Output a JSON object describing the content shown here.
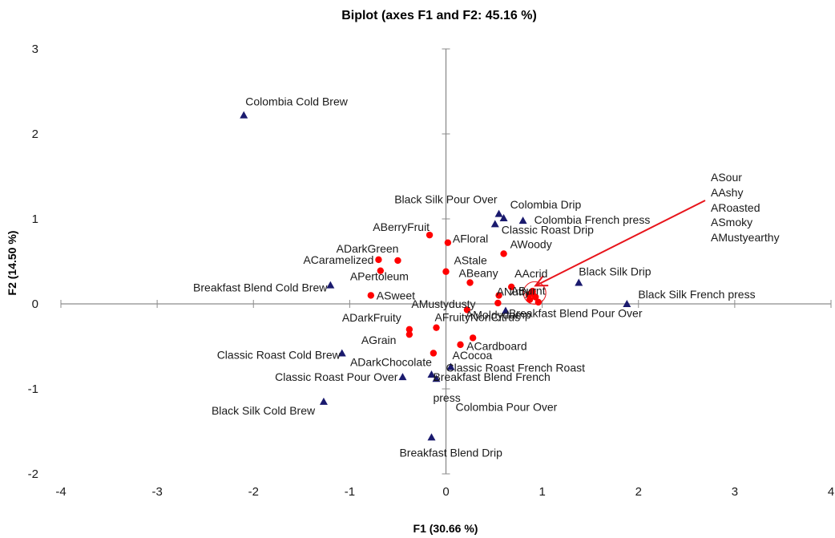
{
  "chart_data": {
    "type": "scatter",
    "title": "Biplot (axes F1 and F2: 45.16 %)",
    "xlabel": "F1 (30.66 %)",
    "ylabel": "F2 (14.50 %)",
    "xlim": [
      -4,
      4
    ],
    "ylim": [
      -2,
      3
    ],
    "xticks": [
      -4,
      -3,
      -2,
      -1,
      0,
      1,
      2,
      3,
      4
    ],
    "yticks": [
      -2,
      -1,
      0,
      1,
      2,
      3
    ],
    "grid": false,
    "colors": {
      "observations": "#1a1a6e",
      "variables": "#ff0000",
      "arrow": "#e8141b",
      "axis": "#8c8c8c"
    },
    "series": [
      {
        "marker": "triangle",
        "points": [
          {
            "label": "Colombia Cold Brew",
            "x": -2.1,
            "y": 2.22
          },
          {
            "label": "Black Silk Pour Over",
            "x": 0.55,
            "y": 1.06
          },
          {
            "label": "Colombia Drip",
            "x": 0.6,
            "y": 1.01
          },
          {
            "label": "Colombia French press",
            "x": 0.8,
            "y": 0.98
          },
          {
            "label": "Classic Roast Drip",
            "x": 0.51,
            "y": 0.94
          },
          {
            "label": "Breakfast Blend Cold Brew",
            "x": -1.2,
            "y": 0.22
          },
          {
            "label": "Black Silk Drip",
            "x": 1.38,
            "y": 0.25
          },
          {
            "label": "Black Silk French press",
            "x": 1.88,
            "y": 0.0
          },
          {
            "label": "Breakfast Blend Pour Over",
            "x": 0.62,
            "y": -0.08
          },
          {
            "label": "Classic Roast Cold Brew",
            "x": -1.08,
            "y": -0.58
          },
          {
            "label": "Classic Roast French Roast",
            "x": 0.05,
            "y": -0.74
          },
          {
            "label": "Classic Roast Pour Over",
            "x": -0.45,
            "y": -0.86
          },
          {
            "label": "Breakfast Blend French\npress",
            "x": -0.15,
            "y": -0.83
          },
          {
            "label": "Colombia Pour Over",
            "x": -0.1,
            "y": -0.88
          },
          {
            "label": "Black Silk Cold Brew",
            "x": -1.27,
            "y": -1.15
          },
          {
            "label": "Breakfast Blend Drip",
            "x": -0.15,
            "y": -1.57
          }
        ]
      },
      {
        "marker": "circle",
        "points": [
          {
            "label": "ABerryFruit",
            "x": -0.17,
            "y": 0.81
          },
          {
            "label": "AFloral",
            "x": 0.02,
            "y": 0.72
          },
          {
            "label": "ADarkGreen",
            "x": -0.5,
            "y": 0.51
          },
          {
            "label": "AWoody",
            "x": 0.6,
            "y": 0.59
          },
          {
            "label": "ACaramelized",
            "x": -0.7,
            "y": 0.52
          },
          {
            "label": "AStale",
            "x": 0.0,
            "y": 0.38
          },
          {
            "label": "ABeany",
            "x": 0.25,
            "y": 0.25
          },
          {
            "label": "APertoleum",
            "x": -0.68,
            "y": 0.39
          },
          {
            "label": "AAcrid",
            "x": 0.68,
            "y": 0.2
          },
          {
            "label": "ANutty",
            "x": 0.55,
            "y": 0.1
          },
          {
            "label": "ABurnt",
            "x": 0.86,
            "y": 0.11
          },
          {
            "label": "ASweet",
            "x": -0.78,
            "y": 0.1
          },
          {
            "label": "AMustydusty",
            "x": 0.54,
            "y": 0.01
          },
          {
            "label": "AMoldydamp",
            "x": 0.22,
            "y": -0.07
          },
          {
            "label": "ADarkFruity",
            "x": -0.38,
            "y": -0.3
          },
          {
            "label": "AFruityNonCitrus",
            "x": -0.1,
            "y": -0.28
          },
          {
            "label": "AGrain",
            "x": -0.38,
            "y": -0.36
          },
          {
            "label": "ACardboard",
            "x": 0.28,
            "y": -0.4
          },
          {
            "label": "ACocoa",
            "x": 0.15,
            "y": -0.48
          },
          {
            "label": "ADarkChocolate",
            "x": -0.13,
            "y": -0.58
          },
          {
            "label": "ASour",
            "x": 0.9,
            "y": 0.15
          },
          {
            "label": "AAshy",
            "x": 0.93,
            "y": 0.08
          },
          {
            "label": "ARoasted",
            "x": 0.87,
            "y": 0.05
          },
          {
            "label": "ASmoky",
            "x": 0.96,
            "y": 0.02
          },
          {
            "label": "AMustyearthy",
            "x": 0.9,
            "y": 0.12
          }
        ]
      }
    ],
    "callout": {
      "labels": [
        "ASour",
        "AAshy",
        "ARoasted",
        "ASmoky",
        "AMustyearthy"
      ],
      "target": {
        "x": 0.93,
        "y": 0.1
      }
    }
  }
}
